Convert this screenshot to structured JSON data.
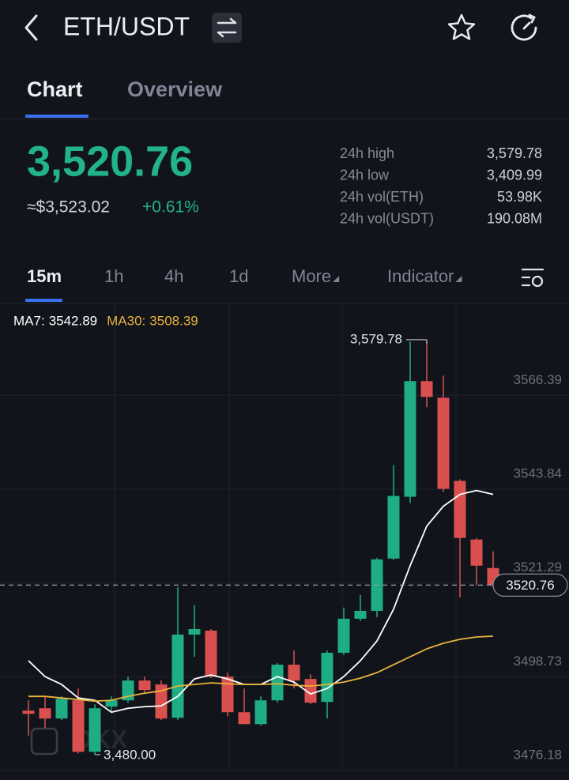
{
  "header": {
    "pair": "ETH/USDT"
  },
  "tabs": [
    "Chart",
    "Overview"
  ],
  "price": {
    "last": "3,520.76",
    "usd": "≈$3,523.02",
    "change": "+0.61%"
  },
  "stats": [
    {
      "label": "24h high",
      "value": "3,579.78"
    },
    {
      "label": "24h low",
      "value": "3,409.99"
    },
    {
      "label": "24h vol(ETH)",
      "value": "53.98K"
    },
    {
      "label": "24h vol(USDT)",
      "value": "190.08M"
    }
  ],
  "timeframes": [
    "15m",
    "1h",
    "4h",
    "1d",
    "More",
    "Indicator"
  ],
  "chart": {
    "type": "candlestick",
    "ylim": [
      3476.18,
      3588.3
    ],
    "yticks": [
      3566.39,
      3543.84,
      3521.29,
      3498.73,
      3476.18
    ],
    "grid": true,
    "up_color": "#1fae84",
    "down_color": "#d9504e",
    "last_price": 3520.76,
    "high_label": {
      "value": 3579.78,
      "label": "3,579.78"
    },
    "low_label": {
      "value": 3480.0,
      "label": "3,480.00"
    },
    "watermark": "OKX",
    "ma_lines": [
      {
        "label": "MA7:",
        "legend_value": 3542.89,
        "color": "#ffffff",
        "values": [
          3502.58,
          3498.77,
          3496.87,
          3493.63,
          3493.06,
          3490.2,
          3491.15,
          3491.53,
          3491.72,
          3494.01,
          3498.2,
          3499.15,
          3498.2,
          3496.87,
          3496.87,
          3498.77,
          3497.44,
          3494.58,
          3495.91,
          3498.77,
          3502.58,
          3507.34,
          3514.96,
          3525.44,
          3534.96,
          3539.72,
          3542.58,
          3543.53,
          3542.58
        ]
      },
      {
        "label": "MA30:",
        "legend_value": 3508.39,
        "color": "#e8b33a",
        "values": [
          3494.01,
          3494.01,
          3493.63,
          3493.25,
          3492.87,
          3493.06,
          3494.01,
          3494.77,
          3495.34,
          3496.49,
          3496.87,
          3497.25,
          3497.06,
          3496.87,
          3496.87,
          3497.06,
          3496.68,
          3496.49,
          3496.87,
          3497.44,
          3498.39,
          3499.72,
          3501.63,
          3503.53,
          3505.44,
          3506.77,
          3507.72,
          3508.29,
          3508.49
        ]
      }
    ],
    "candles": [
      {
        "open": 3490.58,
        "close": 3489.82,
        "high": 3493.06,
        "low": 3484.49
      },
      {
        "open": 3491.15,
        "close": 3488.68,
        "high": 3494.01,
        "low": 3486.39
      },
      {
        "open": 3488.68,
        "close": 3493.44,
        "high": 3494.01,
        "low": 3488.3
      },
      {
        "open": 3493.06,
        "close": 3480.68,
        "high": 3495.91,
        "low": 3480.3
      },
      {
        "open": 3480.68,
        "close": 3491.15,
        "high": 3492.11,
        "low": 3480.0
      },
      {
        "open": 3491.54,
        "close": 3493.06,
        "high": 3494.01,
        "low": 3490.2
      },
      {
        "open": 3493.06,
        "close": 3497.82,
        "high": 3498.77,
        "low": 3492.49
      },
      {
        "open": 3497.82,
        "close": 3495.53,
        "high": 3498.77,
        "low": 3494.96
      },
      {
        "open": 3496.87,
        "close": 3488.68,
        "high": 3497.82,
        "low": 3488.3
      },
      {
        "open": 3488.87,
        "close": 3508.87,
        "high": 3520.3,
        "low": 3488.3
      },
      {
        "open": 3508.87,
        "close": 3510.2,
        "high": 3515.94,
        "low": 3503.53
      },
      {
        "open": 3509.82,
        "close": 3498.77,
        "high": 3510.2,
        "low": 3498.39
      },
      {
        "open": 3498.77,
        "close": 3490.2,
        "high": 3499.72,
        "low": 3489.25
      },
      {
        "open": 3490.2,
        "close": 3487.34,
        "high": 3495.91,
        "low": 3487.34
      },
      {
        "open": 3487.34,
        "close": 3493.06,
        "high": 3494.01,
        "low": 3486.96
      },
      {
        "open": 3493.06,
        "close": 3501.63,
        "high": 3502.01,
        "low": 3492.49
      },
      {
        "open": 3501.63,
        "close": 3497.82,
        "high": 3505.06,
        "low": 3495.91
      },
      {
        "open": 3498.2,
        "close": 3492.49,
        "high": 3499.34,
        "low": 3492.11
      },
      {
        "open": 3492.68,
        "close": 3504.49,
        "high": 3505.06,
        "low": 3488.68
      },
      {
        "open": 3504.49,
        "close": 3512.68,
        "high": 3515.37,
        "low": 3503.91
      },
      {
        "open": 3512.68,
        "close": 3514.58,
        "high": 3518.39,
        "low": 3512.1
      },
      {
        "open": 3514.58,
        "close": 3526.96,
        "high": 3527.34,
        "low": 3513.06
      },
      {
        "open": 3527.15,
        "close": 3542.2,
        "high": 3549.63,
        "low": 3526.77
      },
      {
        "open": 3542.01,
        "close": 3569.82,
        "high": 3579.34,
        "low": 3540.49
      },
      {
        "open": 3569.82,
        "close": 3566.01,
        "high": 3579.78,
        "low": 3563.53
      },
      {
        "open": 3565.82,
        "close": 3543.91,
        "high": 3571.15,
        "low": 3543.15
      },
      {
        "open": 3545.82,
        "close": 3532.11,
        "high": 3546.2,
        "low": 3517.82
      },
      {
        "open": 3531.73,
        "close": 3525.44,
        "high": 3532.11,
        "low": 3520.68
      },
      {
        "open": 3524.87,
        "close": 3520.76,
        "high": 3528.87,
        "low": 3520.3
      }
    ]
  }
}
